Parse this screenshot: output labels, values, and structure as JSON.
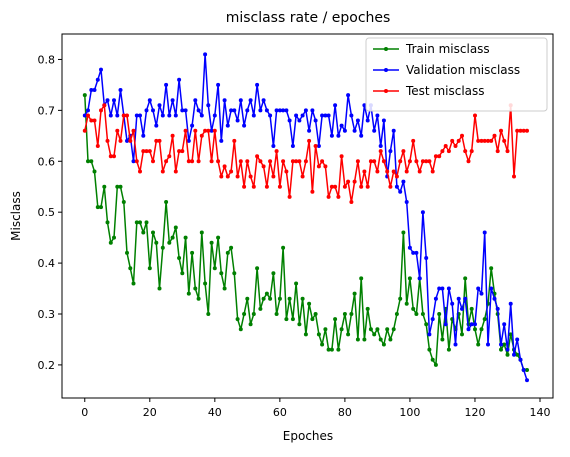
{
  "chart_data": {
    "type": "line",
    "title": "misclass rate / epoches",
    "xlabel": "Epoches",
    "ylabel": "Misclass",
    "xlim": [
      -7,
      144
    ],
    "ylim": [
      0.135,
      0.85
    ],
    "xticks": [
      0,
      20,
      40,
      60,
      80,
      100,
      120,
      140
    ],
    "yticks": [
      0.2,
      0.3,
      0.4,
      0.5,
      0.6,
      0.7,
      0.8
    ],
    "grid": false,
    "legend_position": "top-right",
    "series": [
      {
        "name": "Train misclass",
        "color": "#008000",
        "values": [
          0.73,
          0.6,
          0.6,
          0.58,
          0.51,
          0.51,
          0.55,
          0.48,
          0.44,
          0.45,
          0.55,
          0.55,
          0.52,
          0.42,
          0.39,
          0.36,
          0.48,
          0.48,
          0.46,
          0.48,
          0.39,
          0.46,
          0.44,
          0.35,
          0.43,
          0.52,
          0.44,
          0.45,
          0.47,
          0.41,
          0.38,
          0.45,
          0.34,
          0.42,
          0.35,
          0.33,
          0.46,
          0.36,
          0.3,
          0.44,
          0.39,
          0.45,
          0.38,
          0.35,
          0.42,
          0.43,
          0.38,
          0.29,
          0.27,
          0.3,
          0.33,
          0.28,
          0.3,
          0.39,
          0.31,
          0.33,
          0.34,
          0.33,
          0.38,
          0.3,
          0.33,
          0.43,
          0.29,
          0.33,
          0.29,
          0.36,
          0.28,
          0.33,
          0.26,
          0.32,
          0.29,
          0.3,
          0.26,
          0.24,
          0.27,
          0.23,
          0.23,
          0.29,
          0.23,
          0.27,
          0.3,
          0.26,
          0.3,
          0.34,
          0.25,
          0.37,
          0.25,
          0.31,
          0.27,
          0.26,
          0.27,
          0.25,
          0.24,
          0.27,
          0.25,
          0.27,
          0.3,
          0.33,
          0.46,
          0.32,
          0.37,
          0.31,
          0.3,
          0.37,
          0.3,
          0.28,
          0.23,
          0.21,
          0.2,
          0.3,
          0.25,
          0.31,
          0.23,
          0.29,
          0.27,
          0.3,
          0.26,
          0.37,
          0.28,
          0.31,
          0.27,
          0.24,
          0.27,
          0.29,
          0.32,
          0.39,
          0.34,
          0.3,
          0.23,
          0.24,
          0.22,
          0.26,
          0.23,
          0.22,
          0.21,
          0.19,
          0.19
        ]
      },
      {
        "name": "Validation misclass",
        "color": "#0000ff",
        "values": [
          0.69,
          0.7,
          0.74,
          0.74,
          0.76,
          0.78,
          0.71,
          0.72,
          0.69,
          0.72,
          0.69,
          0.74,
          0.69,
          0.64,
          0.65,
          0.6,
          0.69,
          0.69,
          0.65,
          0.7,
          0.72,
          0.7,
          0.67,
          0.71,
          0.69,
          0.75,
          0.69,
          0.72,
          0.69,
          0.76,
          0.7,
          0.7,
          0.64,
          0.67,
          0.72,
          0.7,
          0.69,
          0.81,
          0.71,
          0.66,
          0.69,
          0.75,
          0.64,
          0.72,
          0.67,
          0.7,
          0.7,
          0.68,
          0.72,
          0.67,
          0.7,
          0.72,
          0.69,
          0.75,
          0.7,
          0.72,
          0.7,
          0.69,
          0.63,
          0.7,
          0.7,
          0.7,
          0.7,
          0.68,
          0.63,
          0.69,
          0.68,
          0.69,
          0.7,
          0.66,
          0.7,
          0.68,
          0.63,
          0.69,
          0.69,
          0.69,
          0.65,
          0.71,
          0.65,
          0.67,
          0.66,
          0.73,
          0.69,
          0.66,
          0.68,
          0.65,
          0.71,
          0.68,
          0.71,
          0.66,
          0.69,
          0.63,
          0.68,
          0.57,
          0.62,
          0.66,
          0.55,
          0.54,
          0.56,
          0.52,
          0.43,
          0.42,
          0.42,
          0.37,
          0.5,
          0.41,
          0.26,
          0.29,
          0.33,
          0.35,
          0.35,
          0.28,
          0.35,
          0.32,
          0.24,
          0.33,
          0.31,
          0.33,
          0.27,
          0.28,
          0.28,
          0.35,
          0.34,
          0.46,
          0.24,
          0.35,
          0.33,
          0.31,
          0.24,
          0.28,
          0.23,
          0.32,
          0.22,
          0.25,
          0.21,
          0.19,
          0.17
        ]
      },
      {
        "name": "Test misclass",
        "color": "#ff0000",
        "values": [
          0.66,
          0.69,
          0.68,
          0.68,
          0.63,
          0.7,
          0.71,
          0.64,
          0.61,
          0.61,
          0.66,
          0.64,
          0.69,
          0.69,
          0.64,
          0.66,
          0.6,
          0.58,
          0.62,
          0.62,
          0.62,
          0.6,
          0.64,
          0.64,
          0.58,
          0.6,
          0.61,
          0.65,
          0.58,
          0.62,
          0.62,
          0.66,
          0.6,
          0.6,
          0.66,
          0.6,
          0.65,
          0.66,
          0.66,
          0.6,
          0.66,
          0.6,
          0.57,
          0.59,
          0.57,
          0.58,
          0.64,
          0.57,
          0.6,
          0.55,
          0.6,
          0.57,
          0.55,
          0.61,
          0.6,
          0.59,
          0.55,
          0.6,
          0.57,
          0.62,
          0.55,
          0.6,
          0.58,
          0.53,
          0.6,
          0.6,
          0.6,
          0.57,
          0.6,
          0.64,
          0.54,
          0.63,
          0.59,
          0.6,
          0.59,
          0.53,
          0.55,
          0.55,
          0.53,
          0.61,
          0.55,
          0.56,
          0.52,
          0.56,
          0.6,
          0.55,
          0.58,
          0.55,
          0.6,
          0.6,
          0.58,
          0.62,
          0.6,
          0.58,
          0.55,
          0.58,
          0.57,
          0.6,
          0.62,
          0.58,
          0.6,
          0.64,
          0.6,
          0.58,
          0.6,
          0.6,
          0.6,
          0.58,
          0.61,
          0.61,
          0.62,
          0.63,
          0.62,
          0.64,
          0.63,
          0.64,
          0.65,
          0.62,
          0.6,
          0.62,
          0.69,
          0.64,
          0.64,
          0.64,
          0.64,
          0.64,
          0.65,
          0.62,
          0.66,
          0.64,
          0.62,
          0.71,
          0.57,
          0.66,
          0.66,
          0.66,
          0.66
        ]
      }
    ]
  }
}
